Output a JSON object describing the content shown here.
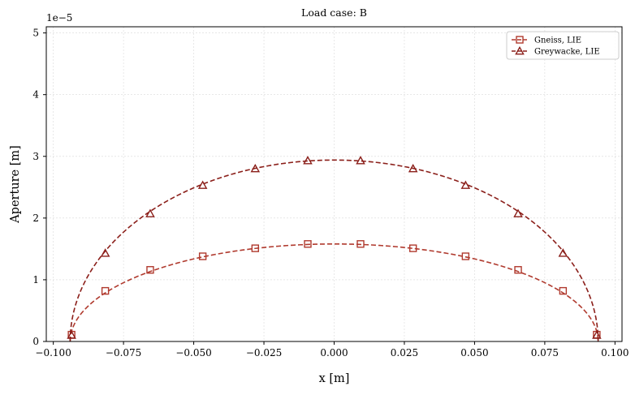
{
  "chart_data": {
    "type": "line",
    "title": "Load case: B",
    "xlabel": "x [m]",
    "ylabel": "Aperture [m]",
    "y_offset_label": "1e−5",
    "xlim": [
      -0.1025,
      0.1025
    ],
    "ylim": [
      0,
      5.1e-05
    ],
    "x_ticks": [
      -0.1,
      -0.075,
      -0.05,
      -0.025,
      0.0,
      0.025,
      0.05,
      0.075,
      0.1
    ],
    "x_tick_labels": [
      "−0.100",
      "−0.075",
      "−0.050",
      "−0.025",
      "0.000",
      "0.025",
      "0.050",
      "0.075",
      "0.100"
    ],
    "y_ticks": [
      0,
      1e-05,
      2e-05,
      3e-05,
      4e-05,
      5e-05
    ],
    "y_tick_labels": [
      "0",
      "1",
      "2",
      "3",
      "4",
      "5"
    ],
    "grid": true,
    "legend_position": "top-right",
    "half_length": 0.094,
    "series": [
      {
        "name": "Gneiss, LIE",
        "color": "#b03a2e",
        "marker": "square",
        "line_style": "dashed",
        "peak": 1.58e-05,
        "x": [
          -0.0935,
          -0.0815,
          -0.0655,
          -0.0468,
          -0.0281,
          -0.0094,
          0.0094,
          0.0281,
          0.0468,
          0.0655,
          0.0815,
          0.0935
        ],
        "y": [
          1.1e-06,
          8.2e-06,
          1.16e-05,
          1.38e-05,
          1.51e-05,
          1.58e-05,
          1.58e-05,
          1.51e-05,
          1.38e-05,
          1.16e-05,
          8.2e-06,
          1.1e-06
        ]
      },
      {
        "name": "Greywacke, LIE",
        "color": "#8b1f1a",
        "marker": "triangle",
        "line_style": "dashed",
        "peak": 2.94e-05,
        "x": [
          -0.0935,
          -0.0815,
          -0.0655,
          -0.0468,
          -0.0281,
          -0.0094,
          0.0094,
          0.0281,
          0.0468,
          0.0655,
          0.0815,
          0.0935
        ],
        "y": [
          1e-06,
          1.43e-05,
          2.07e-05,
          2.53e-05,
          2.8e-05,
          2.93e-05,
          2.93e-05,
          2.8e-05,
          2.53e-05,
          2.07e-05,
          1.43e-05,
          1e-06
        ]
      }
    ]
  }
}
